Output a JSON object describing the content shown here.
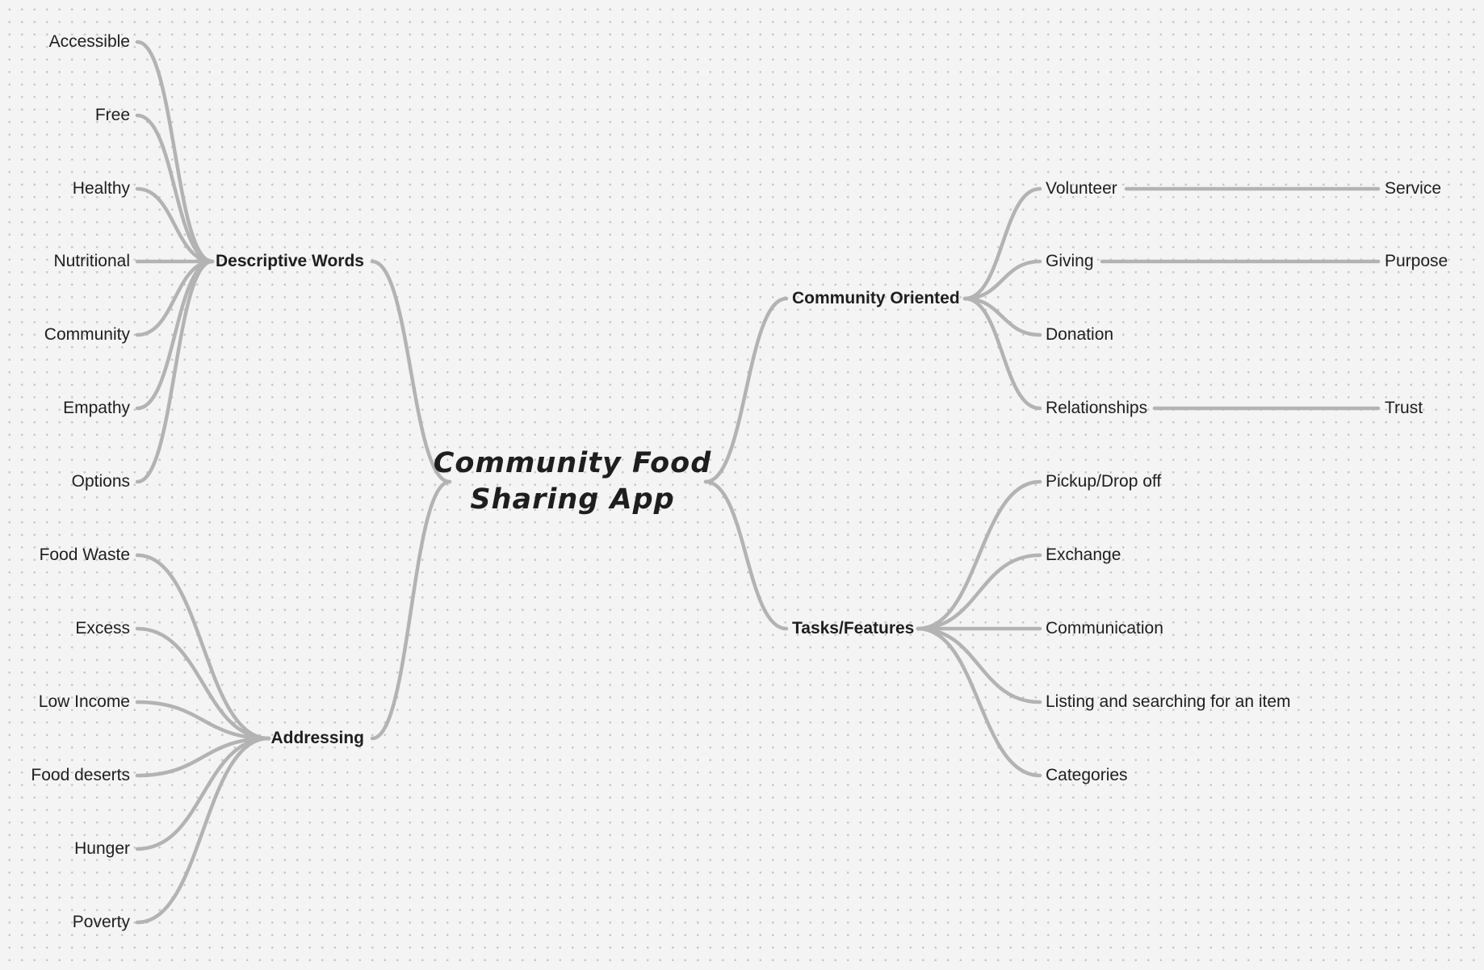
{
  "mindmap": {
    "root": {
      "line1": "Community Food",
      "line2": "Sharing App"
    },
    "branches": {
      "descriptive": {
        "label": "Descriptive Words",
        "children": [
          "Accessible",
          "Free",
          "Healthy",
          "Nutritional",
          "Community",
          "Empathy",
          "Options"
        ]
      },
      "addressing": {
        "label": "Addressing",
        "children": [
          "Food Waste",
          "Excess",
          "Low Income",
          "Food deserts",
          "Hunger",
          "Poverty"
        ]
      },
      "community": {
        "label": "Community Oriented",
        "children": [
          "Volunteer",
          "Giving",
          "Donation",
          "Relationships"
        ],
        "leaves": [
          "Service",
          "Purpose",
          "Trust"
        ]
      },
      "tasks": {
        "label": "Tasks/Features",
        "children": [
          "Pickup/Drop off",
          "Exchange",
          "Communication",
          "Listing and searching for an item",
          "Categories"
        ]
      }
    },
    "colors": {
      "connector": "#b3b3b3",
      "text": "#1e1e1e",
      "background": "#f4f4f4",
      "dots": "#c6c6c6"
    }
  }
}
